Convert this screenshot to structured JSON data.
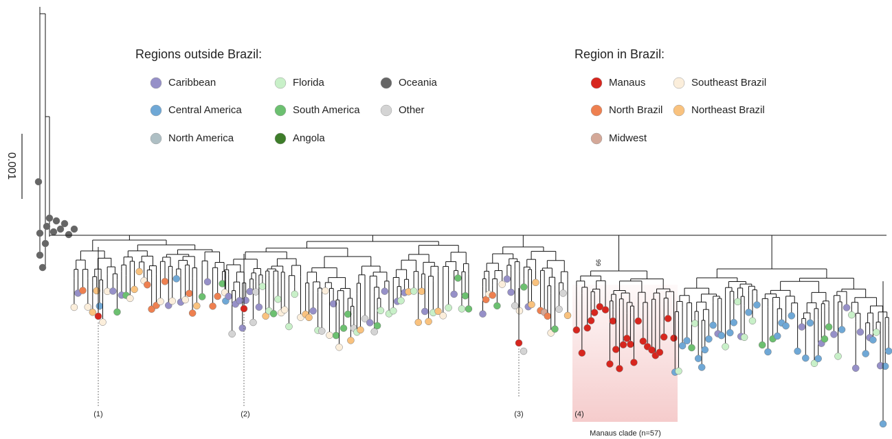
{
  "legend_outside": {
    "title": "Regions outside Brazil:",
    "items": [
      {
        "label": "Caribbean",
        "color": "#9690c8"
      },
      {
        "label": "Central America",
        "color": "#6fa8d6"
      },
      {
        "label": "North America",
        "color": "#aebfc4"
      },
      {
        "label": "Florida",
        "color": "#c8f0c8"
      },
      {
        "label": "South America",
        "color": "#6cc070"
      },
      {
        "label": "Angola",
        "color": "#3e7d2a"
      },
      {
        "label": "Oceania",
        "color": "#666666"
      },
      {
        "label": "Other",
        "color": "#d4d4d4"
      }
    ]
  },
  "legend_brazil": {
    "title": "Region in Brazil:",
    "items": [
      {
        "label": "Manaus",
        "color": "#d7261e"
      },
      {
        "label": "North Brazil",
        "color": "#ee8050"
      },
      {
        "label": "Midwest",
        "color": "#d4a898"
      },
      {
        "label": "Southeast Brazil",
        "color": "#fbeedb"
      },
      {
        "label": "Northeast Brazil",
        "color": "#f9c27e"
      }
    ]
  },
  "scale_bar": "0.001",
  "bootstrap_label": "99",
  "annotations": [
    "(1)",
    "(2)",
    "(3)",
    "(4)"
  ],
  "clade_label": "Manaus clade (n=57)"
}
